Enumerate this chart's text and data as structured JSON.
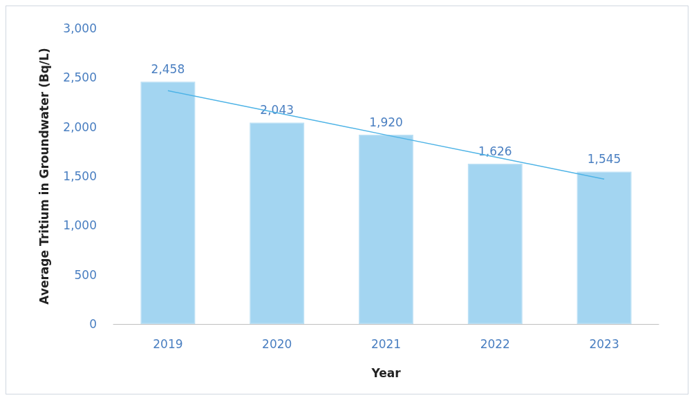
{
  "chart_data": {
    "type": "bar",
    "xlabel": "Year",
    "ylabel": "Average Tritium in Groundwater (Bq/L)",
    "categories": [
      "2019",
      "2020",
      "2021",
      "2022",
      "2023"
    ],
    "series": [
      {
        "color": "#a3d5f1",
        "values": [
          2458,
          2043,
          1920,
          1626,
          1545
        ],
        "value_labels": [
          "2,458",
          "2,043",
          "1,920",
          "1,626",
          "1,545"
        ]
      },
      {
        "type": "line",
        "color": "#4db3e6",
        "values": [
          2367,
          2143,
          1918,
          1694,
          1470
        ]
      }
    ],
    "ylim": [
      0,
      3000
    ],
    "yticks": [
      0,
      500,
      {
        "value": 1000,
        "label": "1,000"
      },
      {
        "value": 1500,
        "label": "1,500"
      },
      {
        "value": 2000,
        "label": "2,000"
      },
      {
        "value": 2500,
        "label": "2,500"
      },
      {
        "value": 3000,
        "label": "3,000"
      }
    ],
    "grid": false
  }
}
